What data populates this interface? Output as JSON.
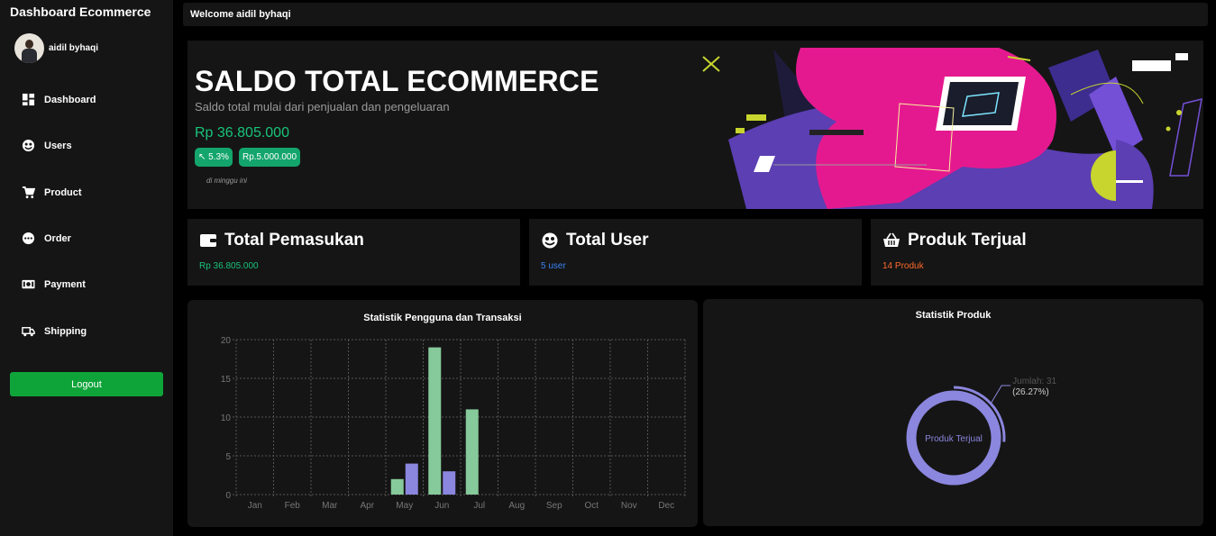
{
  "sidebar": {
    "brand": "Dashboard Ecommerce",
    "user_name": "aidil byhaqi",
    "items": [
      {
        "label": "Dashboard",
        "icon": "dashboard-icon"
      },
      {
        "label": "Users",
        "icon": "users-icon"
      },
      {
        "label": "Product",
        "icon": "cart-icon"
      },
      {
        "label": "Order",
        "icon": "order-icon"
      },
      {
        "label": "Payment",
        "icon": "payment-icon"
      },
      {
        "label": "Shipping",
        "icon": "truck-icon"
      }
    ],
    "logout_label": "Logout"
  },
  "topbar": {
    "welcome": "Welcome aidil byhaqi"
  },
  "hero": {
    "title": "SALDO TOTAL ECOMMERCE",
    "subtitle": "Saldo total mulai dari penjualan dan pengeluaran",
    "amount": "Rp 36.805.000",
    "pill_growth": "↖ 5.3%",
    "pill_amount": "Rp.5.000.000",
    "period": "di minggu ini"
  },
  "cards": {
    "income": {
      "title": "Total Pemasukan",
      "value": "Rp 36.805.000",
      "value_color": "#19c37a"
    },
    "users": {
      "title": "Total User",
      "value": "5 user",
      "value_color": "#3b82f6"
    },
    "sold": {
      "title": "Produk Terjual",
      "value": "14 Produk",
      "value_color": "#ff6a2b"
    }
  },
  "colors": {
    "accent_green": "#0fa43a",
    "bar_green": "#86c99b",
    "bar_purple": "#8b86de",
    "panel": "#151515"
  },
  "chart_data": [
    {
      "type": "bar",
      "title": "Statistik Pengguna dan Transaksi",
      "categories": [
        "Jan",
        "Feb",
        "Mar",
        "Apr",
        "May",
        "Jun",
        "Jul",
        "Aug",
        "Sep",
        "Oct",
        "Nov",
        "Dec"
      ],
      "series": [
        {
          "values": [
            0,
            0,
            0,
            0,
            2,
            19,
            11,
            0,
            0,
            0,
            0,
            0
          ],
          "color": "#86c99b"
        },
        {
          "values": [
            0,
            0,
            0,
            0,
            4,
            3,
            0,
            0,
            0,
            0,
            0,
            0
          ],
          "color": "#8b86de"
        }
      ],
      "ylim": [
        0,
        20
      ],
      "yticks": [
        0,
        5,
        10,
        15,
        20
      ],
      "grid": true
    },
    {
      "type": "pie",
      "title": "Statistik Produk",
      "slices": [
        {
          "label": "Produk Terjual",
          "value": 31,
          "percent": 26.27,
          "color": "#8b86de"
        }
      ],
      "center_label": "Produk Terjual",
      "annotation_value": "Jumlah: 31",
      "annotation_percent": "(26.27%)"
    }
  ]
}
